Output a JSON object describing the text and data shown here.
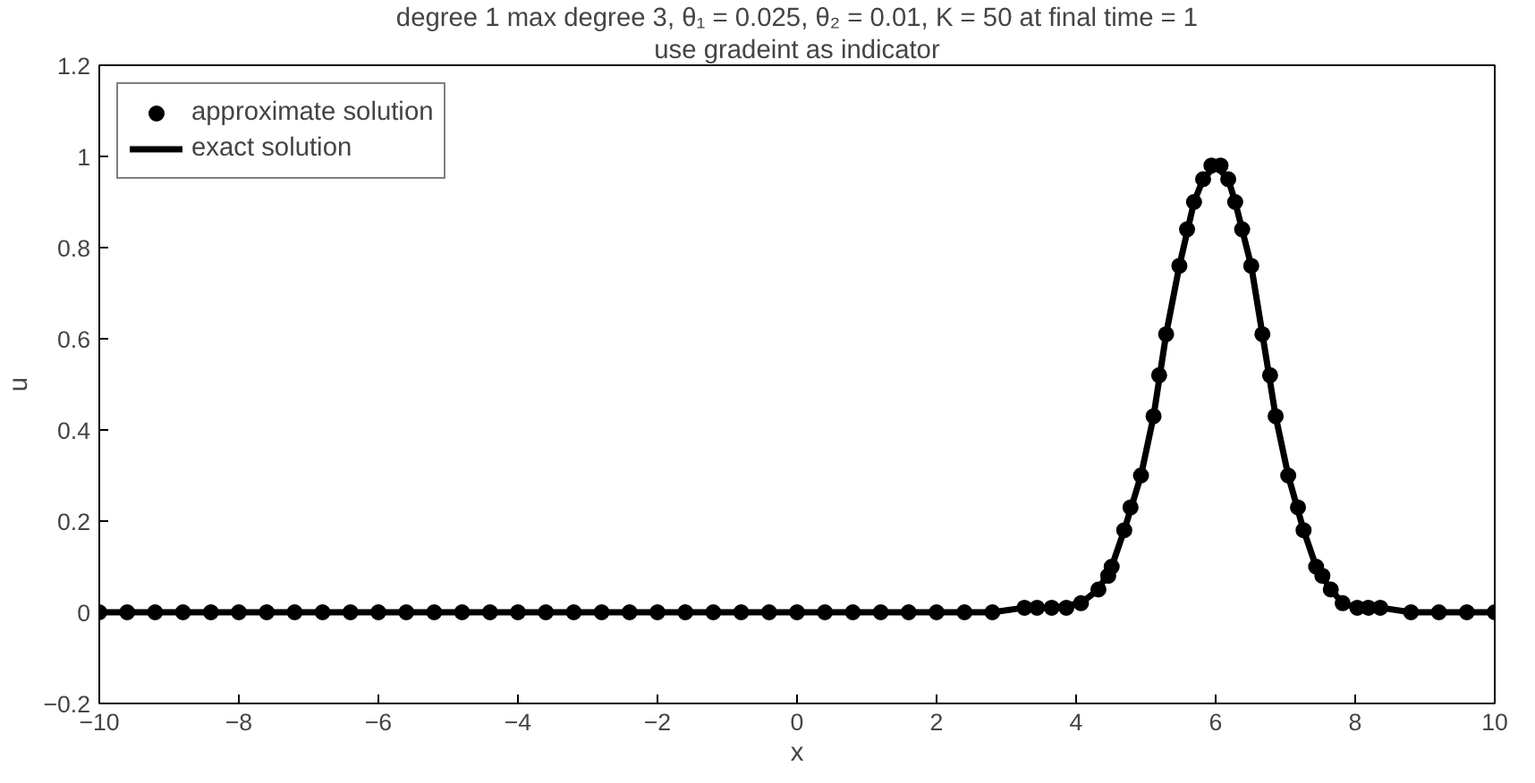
{
  "chart_data": {
    "type": "line",
    "title": "degree 1 max degree 3, θ₁ = 0.025, θ₂ = 0.01, K = 50 at final time = 1",
    "subtitle": "use gradeint as indicator",
    "xlabel": "x",
    "ylabel": "u",
    "xlim": [
      -10,
      10
    ],
    "ylim": [
      -0.2,
      1.2
    ],
    "xticks": [
      -10,
      -8,
      -6,
      -4,
      -2,
      0,
      2,
      4,
      6,
      8,
      10
    ],
    "yticks": [
      -0.2,
      0,
      0.2,
      0.4,
      0.6,
      0.8,
      1,
      1.2
    ],
    "grid": false,
    "legend": "top left",
    "series": [
      {
        "name": "approximate solution",
        "type": "scatter",
        "marker": "circle",
        "color": "#000000",
        "x": [
          -10,
          -9.6,
          -9.2,
          -8.8,
          -8.4,
          -8,
          -7.6,
          -7.2,
          -6.8,
          -6.4,
          -6,
          -5.6,
          -5.2,
          -4.8,
          -4.4,
          -4,
          -3.6,
          -3.2,
          -2.8,
          -2.4,
          -2,
          -1.6,
          -1.2,
          -0.8,
          -0.4,
          0,
          0.4,
          0.8,
          1.2,
          1.6,
          2,
          2.4,
          2.8,
          3.26,
          3.44,
          3.65,
          3.86,
          4.07,
          4.32,
          4.46,
          4.51,
          4.69,
          4.78,
          4.93,
          5.11,
          5.19,
          5.29,
          5.48,
          5.59,
          5.69,
          5.82,
          5.94,
          6.07,
          6.18,
          6.28,
          6.38,
          6.51,
          6.67,
          6.78,
          6.86,
          7.04,
          7.18,
          7.26,
          7.44,
          7.53,
          7.65,
          7.82,
          8.03,
          8.19,
          8.36,
          8.8,
          9.2,
          9.6,
          10
        ],
        "values": [
          0,
          0,
          0,
          0,
          0,
          0,
          0,
          0,
          0,
          0,
          0,
          0,
          0,
          0,
          0,
          0,
          0,
          0,
          0,
          0,
          0,
          0,
          0,
          0,
          0,
          0,
          0,
          0,
          0,
          0,
          0,
          0,
          0,
          0.01,
          0.01,
          0.01,
          0.01,
          0.02,
          0.05,
          0.08,
          0.1,
          0.18,
          0.23,
          0.3,
          0.43,
          0.52,
          0.61,
          0.76,
          0.84,
          0.9,
          0.95,
          0.98,
          0.98,
          0.95,
          0.9,
          0.84,
          0.76,
          0.61,
          0.52,
          0.43,
          0.3,
          0.23,
          0.18,
          0.1,
          0.08,
          0.05,
          0.02,
          0.01,
          0.01,
          0.01,
          0,
          0,
          0,
          0
        ]
      },
      {
        "name": "exact solution",
        "line_style": "solid",
        "color": "#000000",
        "x": [
          -10,
          2.8,
          3.26,
          3.65,
          4.07,
          4.32,
          4.51,
          4.69,
          4.93,
          5.11,
          5.29,
          5.48,
          5.69,
          5.82,
          6,
          6.18,
          6.28,
          6.51,
          6.67,
          6.86,
          7.04,
          7.26,
          7.44,
          7.65,
          7.82,
          8.03,
          8.36,
          8.8,
          10
        ],
        "values": [
          0,
          0,
          0.01,
          0.01,
          0.02,
          0.05,
          0.1,
          0.18,
          0.3,
          0.43,
          0.61,
          0.76,
          0.9,
          0.95,
          0.98,
          0.95,
          0.9,
          0.76,
          0.61,
          0.43,
          0.3,
          0.18,
          0.1,
          0.05,
          0.02,
          0.01,
          0.01,
          0,
          0
        ]
      }
    ]
  }
}
